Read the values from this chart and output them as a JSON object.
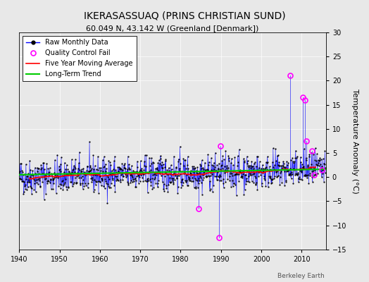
{
  "title": "IKERASASSUAQ (PRINS CHRISTIAN SUND)",
  "subtitle": "60.049 N, 43.142 W (Greenland [Denmark])",
  "ylabel": "Temperature Anomaly (°C)",
  "credit": "Berkeley Earth",
  "ylim": [
    -15,
    30
  ],
  "yticks": [
    -15,
    -10,
    -5,
    0,
    5,
    10,
    15,
    20,
    25,
    30
  ],
  "xlim": [
    1940,
    2016
  ],
  "xticks": [
    1940,
    1950,
    1960,
    1970,
    1980,
    1990,
    2000,
    2010
  ],
  "bg_color": "#e8e8e8",
  "plot_bg_color": "#e8e8e8",
  "line_color": "#0000ff",
  "ma_color": "#ff0000",
  "trend_color": "#00cc00",
  "qc_color": "#ff00ff",
  "title_fontsize": 10,
  "subtitle_fontsize": 8,
  "tick_fontsize": 7,
  "ylabel_fontsize": 8,
  "legend_fontsize": 7,
  "seed": 42,
  "noise_scale": 1.8,
  "qc_points": [
    {
      "year": 1984.5,
      "val": -6.5
    },
    {
      "year": 1989.5,
      "val": -12.5
    },
    {
      "year": 1989.9,
      "val": 6.5
    },
    {
      "year": 2007.2,
      "val": 21.0
    },
    {
      "year": 2010.3,
      "val": 16.5
    },
    {
      "year": 2010.8,
      "val": 16.0
    },
    {
      "year": 2011.2,
      "val": 7.5
    },
    {
      "year": 2012.5,
      "val": 5.5
    },
    {
      "year": 2013.0,
      "val": 0.5
    },
    {
      "year": 2015.0,
      "val": 1.5
    }
  ]
}
